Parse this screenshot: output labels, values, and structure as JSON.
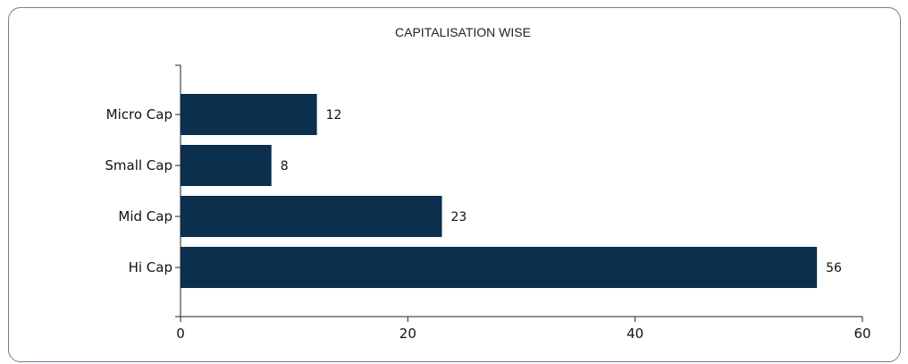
{
  "chart_data": {
    "type": "bar",
    "orientation": "horizontal",
    "title": "CAPITALISATION WISE",
    "categories": [
      "Micro Cap",
      "Small Cap",
      "Mid Cap",
      "Hi Cap"
    ],
    "values": [
      12,
      8,
      23,
      56
    ],
    "xlim": [
      0,
      60
    ],
    "xticks": [
      0,
      20,
      40,
      60
    ],
    "xlabel": "",
    "ylabel": "",
    "grid": false,
    "bar_color": "#0b2f4c"
  }
}
